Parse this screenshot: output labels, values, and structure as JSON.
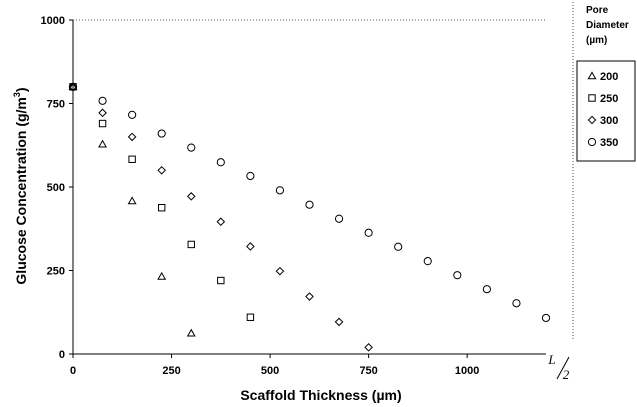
{
  "chart_data": {
    "type": "scatter",
    "xlabel": "Scaffold Thickness (µm)",
    "ylabel": "Glucose Concentration (g/m",
    "ylabel_sup": "3",
    "ylabel_close": ")",
    "xlim": [
      0,
      1200
    ],
    "ylim": [
      0,
      1000
    ],
    "x_ticks": [
      0,
      250,
      500,
      750,
      1000
    ],
    "y_ticks": [
      0,
      250,
      500,
      750,
      1000
    ],
    "x_end_label": {
      "num": "L",
      "den": "2"
    },
    "legend": {
      "position": "right",
      "title": [
        "Pore",
        "Diameter",
        "(µm)"
      ]
    },
    "series": [
      {
        "name": "200",
        "marker": "triangle",
        "x": [
          0,
          75,
          150,
          225,
          300
        ],
        "y": [
          800,
          628,
          458,
          232,
          62
        ]
      },
      {
        "name": "250",
        "marker": "square",
        "x": [
          0,
          75,
          150,
          225,
          300,
          375,
          450
        ],
        "y": [
          800,
          690,
          583,
          438,
          328,
          220,
          110
        ]
      },
      {
        "name": "300",
        "marker": "diamond",
        "x": [
          0,
          75,
          150,
          225,
          300,
          375,
          450,
          525,
          600,
          675,
          750
        ],
        "y": [
          800,
          722,
          650,
          550,
          472,
          396,
          322,
          248,
          172,
          96,
          20
        ]
      },
      {
        "name": "350",
        "marker": "circle",
        "x": [
          0,
          75,
          150,
          225,
          300,
          375,
          450,
          525,
          600,
          675,
          750,
          825,
          900,
          975,
          1050,
          1125,
          1200
        ],
        "y": [
          800,
          758,
          716,
          660,
          618,
          574,
          533,
          490,
          447,
          405,
          363,
          321,
          278,
          236,
          194,
          152,
          108
        ]
      }
    ]
  }
}
